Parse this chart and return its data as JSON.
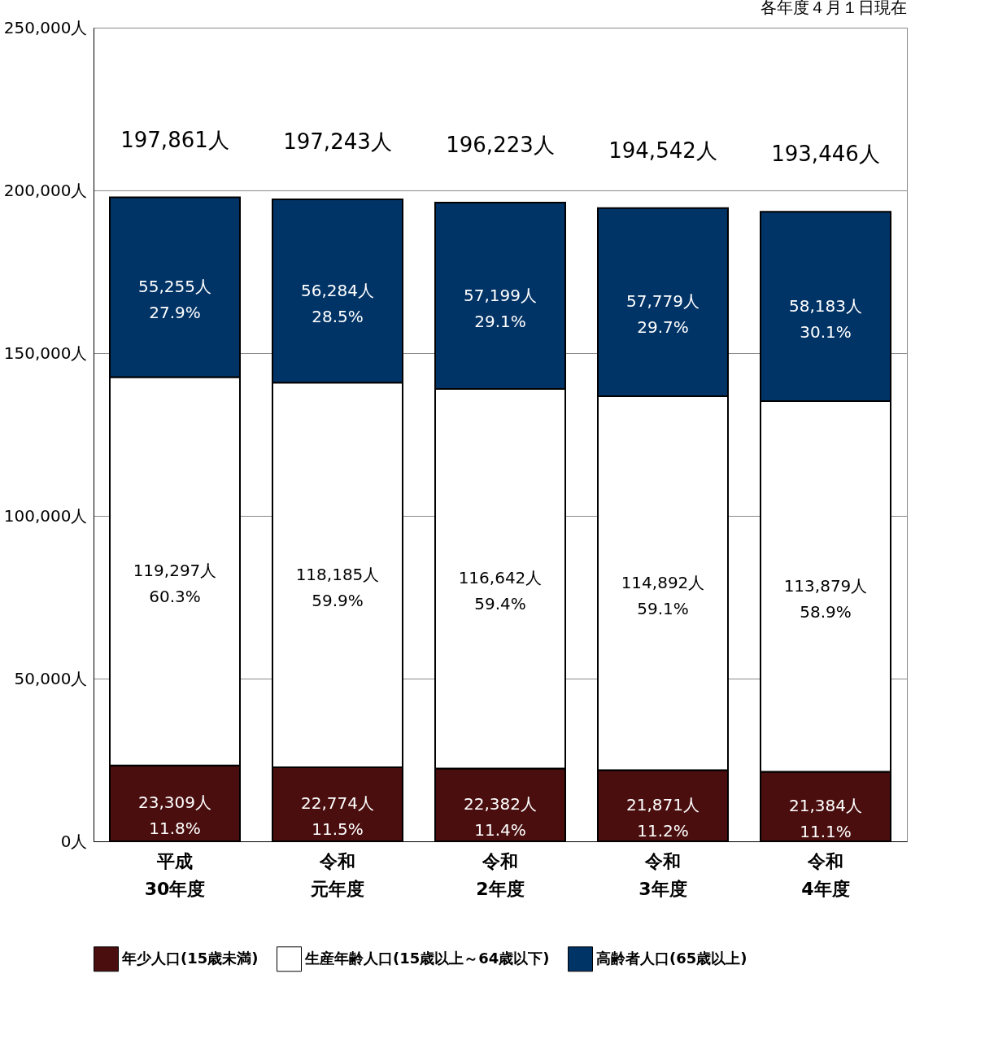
{
  "chart_data": {
    "type": "bar",
    "stacked": true,
    "categories": [
      "平成30年度",
      "令和元年度",
      "令和2年度",
      "令和3年度",
      "令和4年度"
    ],
    "series": [
      {
        "name": "年少人口(15歳未満)",
        "color": "#4a0e0e",
        "values": [
          23309,
          22774,
          22382,
          21871,
          21384
        ],
        "value_labels": [
          "23,309人\n11.8%",
          "22,774人\n11.5%",
          "22,382人\n11.4%",
          "21,871人\n11.2%",
          "21,384人\n11.1%"
        ]
      },
      {
        "name": "生産年齢人口(15歳以上～64歳以下)",
        "color": "#ffffff",
        "values": [
          119297,
          118185,
          116642,
          114892,
          113879
        ],
        "value_labels": [
          "119,297人\n60.3%",
          "118,185人\n59.9%",
          "116,642人\n59.4%",
          "114,892人\n59.1%",
          "113,879人\n58.9%"
        ]
      },
      {
        "name": "高齢者人口(65歳以上)",
        "color": "#003366",
        "values": [
          55255,
          56284,
          57199,
          57779,
          58183
        ],
        "value_labels": [
          "55,255人\n27.9%",
          "56,284人\n28.5%",
          "57,199人\n29.1%",
          "57,779人\n29.7%",
          "58,183人\n30.1%"
        ]
      }
    ],
    "totals": [
      "197,861人",
      "197,243人",
      "196,223人",
      "194,542人",
      "193,446人"
    ],
    "ylim": [
      0,
      250000
    ],
    "yticks": [
      {
        "value": 0,
        "label": "0人"
      },
      {
        "value": 50000,
        "label": "50,000人"
      },
      {
        "value": 100000,
        "label": "100,000人"
      },
      {
        "value": 150000,
        "label": "150,000人"
      },
      {
        "value": 200000,
        "label": "200,000人"
      },
      {
        "value": 250000,
        "label": "250,000人"
      }
    ],
    "grid": "y",
    "legend": "bottom",
    "annotations": [
      "各年度４月１日現在"
    ]
  }
}
